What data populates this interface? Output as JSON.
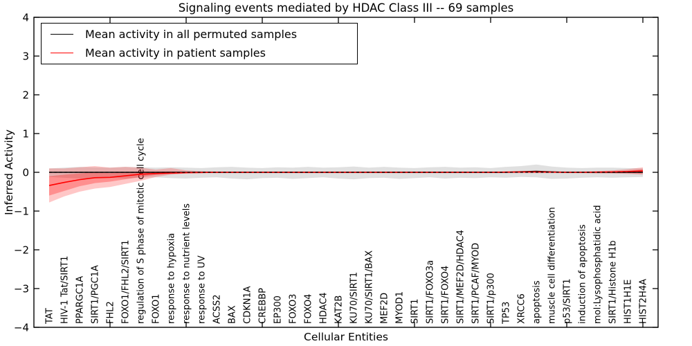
{
  "legend": {
    "entries": [
      {
        "label": "Mean activity in all permuted samples",
        "color": "#000000"
      },
      {
        "label": "Mean activity in patient samples",
        "color": "#ff0000"
      }
    ]
  },
  "chart_data": {
    "type": "line",
    "title": "Signaling events mediated by HDAC Class III -- 69 samples",
    "xlabel": "Cellular Entities",
    "ylabel": "Inferred Activity",
    "ylim": [
      -4,
      4
    ],
    "grid": false,
    "legend_position": "upper-left",
    "zero_line_style": "dashed",
    "yticks": [
      {
        "v": -4,
        "label": "−4"
      },
      {
        "v": -3,
        "label": "−3"
      },
      {
        "v": -2,
        "label": "−2"
      },
      {
        "v": -1,
        "label": "−1"
      },
      {
        "v": 0,
        "label": "0"
      },
      {
        "v": 1,
        "label": "1"
      },
      {
        "v": 2,
        "label": "2"
      },
      {
        "v": 3,
        "label": "3"
      },
      {
        "v": 4,
        "label": "4"
      }
    ],
    "xtick_units": [
      5,
      10,
      15,
      20,
      25,
      30,
      35,
      40
    ],
    "categories": [
      "TAT",
      "HIV-1 Tat/SIRT1",
      "PPARGC1A",
      "SIRT1/PGC1A",
      "FHL2",
      "FOXO1/FHL2/SIRT1",
      "regulation of S phase of mitotic cell cycle",
      "FOXO1",
      "response to hypoxia",
      "response to nutrient levels",
      "response to UV",
      "ACSS2",
      "BAX",
      "CDKN1A",
      "CREBBP",
      "EP300",
      "FOXO3",
      "FOXO4",
      "HDAC4",
      "KAT2B",
      "KU70/SIRT1",
      "KU70/SIRT1/BAX",
      "MEF2D",
      "MYOD1",
      "SIRT1",
      "SIRT1/FOXO3a",
      "SIRT1/FOXO4",
      "SIRT1/MEF2D/HDAC4",
      "SIRT1/PCAF/MYOD",
      "SIRT1/p300",
      "TP53",
      "XRCC6",
      "apoptosis",
      "muscle cell differentiation",
      "p53/SIRT1",
      "induction of apoptosis",
      "mol:Lysophosphatidic acid",
      "SIRT1/Histone H1b",
      "HIST1H1E",
      "HIST2H4A"
    ],
    "series": [
      {
        "name": "Mean activity in all permuted samples",
        "color": "#000000",
        "style": "solid",
        "values": [
          0,
          0,
          0,
          0,
          0,
          0,
          0,
          0,
          0,
          0,
          0,
          0,
          0,
          0,
          0,
          0,
          0,
          0,
          0,
          0,
          0,
          0,
          0,
          0,
          0,
          0,
          0,
          0,
          0,
          0,
          0,
          0.015,
          0.025,
          0.01,
          0,
          0,
          0,
          0,
          0,
          0
        ]
      },
      {
        "name": "Mean activity in patient samples",
        "color": "#ff0000",
        "style": "solid",
        "values": [
          -0.34,
          -0.26,
          -0.19,
          -0.14,
          -0.13,
          -0.09,
          -0.05,
          -0.03,
          -0.02,
          -0.01,
          -0.005,
          0,
          0,
          0,
          0,
          0,
          0,
          0,
          0,
          0,
          0,
          0,
          0,
          0,
          0,
          0,
          0,
          0,
          0,
          0,
          0.005,
          0.01,
          0.01,
          0.005,
          0,
          0,
          0.005,
          0.01,
          0.02,
          0.035
        ]
      }
    ],
    "bands": [
      {
        "name": "permuted-samples-range",
        "fill": "rgba(0,0,0,0.12)",
        "low": [
          -0.12,
          -0.14,
          -0.16,
          -0.15,
          -0.14,
          -0.16,
          -0.14,
          -0.13,
          -0.15,
          -0.16,
          -0.14,
          -0.13,
          -0.16,
          -0.18,
          -0.15,
          -0.14,
          -0.17,
          -0.15,
          -0.13,
          -0.16,
          -0.18,
          -0.15,
          -0.14,
          -0.17,
          -0.15,
          -0.13,
          -0.16,
          -0.14,
          -0.15,
          -0.13,
          -0.14,
          -0.12,
          -0.13,
          -0.17,
          -0.16,
          -0.14,
          -0.13,
          -0.14,
          -0.13,
          -0.12
        ],
        "high": [
          0.1,
          0.12,
          0.14,
          0.13,
          0.12,
          0.14,
          0.13,
          0.12,
          0.13,
          0.12,
          0.11,
          0.13,
          0.14,
          0.12,
          0.11,
          0.13,
          0.12,
          0.14,
          0.12,
          0.13,
          0.15,
          0.12,
          0.14,
          0.12,
          0.11,
          0.13,
          0.14,
          0.12,
          0.13,
          0.11,
          0.14,
          0.16,
          0.2,
          0.15,
          0.12,
          0.11,
          0.12,
          0.12,
          0.11,
          0.1
        ]
      },
      {
        "name": "patient-samples-range-outer",
        "fill": "rgba(255,0,0,0.22)",
        "low": [
          -0.78,
          -0.62,
          -0.5,
          -0.42,
          -0.38,
          -0.3,
          -0.22,
          -0.12,
          -0.06,
          -0.03,
          -0.02,
          -0.02,
          -0.02,
          -0.02,
          -0.02,
          -0.02,
          -0.02,
          -0.02,
          -0.02,
          -0.02,
          -0.02,
          -0.02,
          -0.02,
          -0.02,
          -0.02,
          -0.02,
          -0.02,
          -0.02,
          -0.02,
          -0.02,
          -0.02,
          -0.02,
          -0.02,
          -0.02,
          -0.02,
          -0.02,
          -0.03,
          -0.03,
          -0.04,
          -0.06
        ],
        "high": [
          0.1,
          0.1,
          0.13,
          0.16,
          0.12,
          0.14,
          0.12,
          0.07,
          0.11,
          0.05,
          0.03,
          0.02,
          0.02,
          0.02,
          0.02,
          0.02,
          0.02,
          0.02,
          0.02,
          0.02,
          0.02,
          0.02,
          0.02,
          0.02,
          0.02,
          0.02,
          0.02,
          0.02,
          0.02,
          0.02,
          0.02,
          0.02,
          0.03,
          0.02,
          0.02,
          0.02,
          0.03,
          0.05,
          0.08,
          0.13
        ]
      },
      {
        "name": "patient-samples-range-inner",
        "fill": "rgba(255,0,0,0.28)",
        "low": [
          -0.6,
          -0.48,
          -0.36,
          -0.28,
          -0.24,
          -0.18,
          -0.12,
          -0.07,
          -0.04,
          -0.02,
          -0.01,
          -0.01,
          -0.01,
          -0.01,
          -0.01,
          -0.01,
          -0.01,
          -0.01,
          -0.01,
          -0.01,
          -0.01,
          -0.01,
          -0.01,
          -0.01,
          -0.01,
          -0.01,
          -0.01,
          -0.01,
          -0.01,
          -0.01,
          -0.01,
          -0.01,
          -0.01,
          -0.01,
          -0.01,
          -0.01,
          -0.01,
          -0.02,
          -0.02,
          -0.03
        ],
        "high": [
          -0.1,
          -0.06,
          -0.03,
          0.0,
          -0.02,
          0.0,
          0.02,
          0.01,
          0.02,
          0.01,
          0.01,
          0.01,
          0.01,
          0.01,
          0.01,
          0.01,
          0.01,
          0.01,
          0.01,
          0.01,
          0.01,
          0.01,
          0.01,
          0.01,
          0.01,
          0.01,
          0.01,
          0.01,
          0.01,
          0.01,
          0.01,
          0.02,
          0.02,
          0.01,
          0.01,
          0.01,
          0.01,
          0.02,
          0.04,
          0.08
        ]
      }
    ]
  }
}
